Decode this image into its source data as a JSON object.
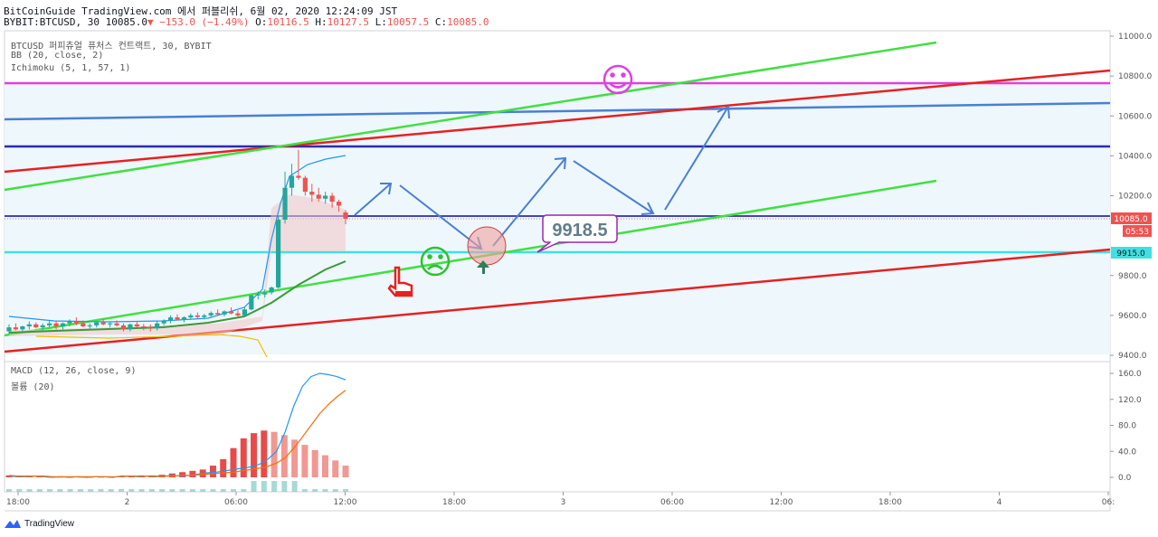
{
  "header": {
    "line1": "BitCoinGuide TradingView.com 에서 퍼블리쉬, 6월 02, 2020 12:24:09 JST",
    "symbol": "BYBIT:BTCUSD, 30",
    "last": "10085.0",
    "change": "−153.0 (−1.49%)",
    "o_label": "O:",
    "o_val": "10116.5",
    "h_label": "H:",
    "h_val": "10127.5",
    "l_label": "L:",
    "l_val": "10057.5",
    "c_label": "C:",
    "c_val": "10085.0"
  },
  "indicators": {
    "main": "BTCUSD 퍼피츄얼 퓨처스 컨트랙트, 30, BYBIT",
    "bb": "BB (20, close, 2)",
    "ichimoku": "Ichimoku (5, 1, 57, 1)",
    "macd": "MACD (12, 26, close, 9)",
    "volume": "볼륨 (20)"
  },
  "price_tags": {
    "last": "10085.0",
    "countdown": "05:53",
    "level": "9915.0"
  },
  "annotation": {
    "label": "9918.5"
  },
  "colors": {
    "up": "#26a69a",
    "down": "#ef5350",
    "magenta": "#e040e0",
    "navy": "#2b2bb0",
    "cyan": "#40e0e0",
    "green": "#40e040",
    "red": "#e82020",
    "blue": "#4a7fd4"
  },
  "icons": [
    "smile-icon",
    "sad-icon",
    "pointing-hand-icon",
    "up-arrow-icon",
    "tradingview-logo-icon"
  ],
  "footer": {
    "brand": "TradingView"
  },
  "chart_data": {
    "type": "candlestick",
    "price_axis_ticks": [
      "11000.0",
      "10800.0",
      "10600.0",
      "10400.0",
      "10200.0",
      "9800.0",
      "9600.0",
      "9400.0"
    ],
    "macd_axis_ticks": [
      "160.0",
      "120.0",
      "80.0",
      "40.0",
      "0.0"
    ],
    "time_axis_ticks": [
      "18:00",
      "2",
      "06:00",
      "12:00",
      "18:00",
      "3",
      "06:00",
      "12:00",
      "18:00",
      "4",
      "06:"
    ],
    "candles_ohlc": [
      [
        9520,
        9555,
        9505,
        9540
      ],
      [
        9540,
        9560,
        9525,
        9530
      ],
      [
        9530,
        9548,
        9510,
        9545
      ],
      [
        9545,
        9570,
        9530,
        9555
      ],
      [
        9555,
        9565,
        9535,
        9540
      ],
      [
        9540,
        9560,
        9520,
        9550
      ],
      [
        9550,
        9575,
        9540,
        9560
      ],
      [
        9560,
        9575,
        9530,
        9545
      ],
      [
        9545,
        9565,
        9530,
        9560
      ],
      [
        9560,
        9580,
        9545,
        9570
      ],
      [
        9570,
        9590,
        9550,
        9560
      ],
      [
        9560,
        9575,
        9540,
        9545
      ],
      [
        9545,
        9560,
        9525,
        9550
      ],
      [
        9550,
        9570,
        9540,
        9565
      ],
      [
        9565,
        9580,
        9550,
        9555
      ],
      [
        9555,
        9568,
        9540,
        9560
      ],
      [
        9560,
        9575,
        9545,
        9550
      ],
      [
        9550,
        9560,
        9520,
        9530
      ],
      [
        9530,
        9560,
        9520,
        9555
      ],
      [
        9555,
        9570,
        9540,
        9545
      ],
      [
        9545,
        9558,
        9525,
        9540
      ],
      [
        9540,
        9555,
        9520,
        9535
      ],
      [
        9535,
        9570,
        9525,
        9560
      ],
      [
        9560,
        9580,
        9550,
        9575
      ],
      [
        9575,
        9600,
        9560,
        9590
      ],
      [
        9590,
        9605,
        9575,
        9580
      ],
      [
        9580,
        9595,
        9565,
        9590
      ],
      [
        9590,
        9610,
        9580,
        9600
      ],
      [
        9600,
        9615,
        9585,
        9592
      ],
      [
        9592,
        9608,
        9580,
        9600
      ],
      [
        9600,
        9620,
        9590,
        9612
      ],
      [
        9612,
        9630,
        9598,
        9605
      ],
      [
        9605,
        9625,
        9595,
        9620
      ],
      [
        9620,
        9640,
        9605,
        9610
      ],
      [
        9610,
        9625,
        9590,
        9600
      ],
      [
        9600,
        9640,
        9595,
        9630
      ],
      [
        9630,
        9705,
        9625,
        9700
      ],
      [
        9700,
        9720,
        9680,
        9705
      ],
      [
        9705,
        9730,
        9690,
        9715
      ],
      [
        9715,
        9745,
        9705,
        9740
      ],
      [
        9740,
        10100,
        9735,
        10080
      ],
      [
        10080,
        10320,
        10060,
        10240
      ],
      [
        10240,
        10360,
        10200,
        10300
      ],
      [
        10300,
        10430,
        10280,
        10290
      ],
      [
        10290,
        10300,
        10200,
        10220
      ],
      [
        10220,
        10260,
        10170,
        10205
      ],
      [
        10205,
        10240,
        10170,
        10185
      ],
      [
        10185,
        10220,
        10160,
        10200
      ],
      [
        10200,
        10215,
        10140,
        10170
      ],
      [
        10170,
        10180,
        10120,
        10150
      ],
      [
        10116.5,
        10127.5,
        10057.5,
        10085
      ]
    ],
    "macd": [
      2,
      1,
      1,
      2,
      1,
      0,
      1,
      0,
      1,
      0,
      1,
      1,
      0,
      2,
      2,
      1,
      2,
      1,
      2,
      3,
      2,
      3,
      5,
      7,
      8,
      10,
      12,
      14,
      16,
      20,
      28,
      40,
      70,
      110,
      140,
      155,
      160,
      158,
      155,
      150
    ],
    "signal": [
      3,
      2,
      2,
      2,
      2,
      1,
      1,
      1,
      1,
      1,
      1,
      1,
      1,
      1,
      2,
      2,
      2,
      2,
      2,
      2,
      3,
      3,
      4,
      5,
      6,
      7,
      8,
      10,
      12,
      14,
      17,
      22,
      30,
      45,
      62,
      80,
      98,
      112,
      124,
      134
    ],
    "histogram": [
      3,
      2,
      2,
      2,
      1,
      1,
      1,
      1,
      1,
      1,
      1,
      2,
      2,
      3,
      3,
      4,
      6,
      8,
      10,
      12,
      18,
      28,
      45,
      60,
      68,
      72,
      70,
      65,
      58,
      50,
      42,
      34,
      26,
      18
    ]
  }
}
